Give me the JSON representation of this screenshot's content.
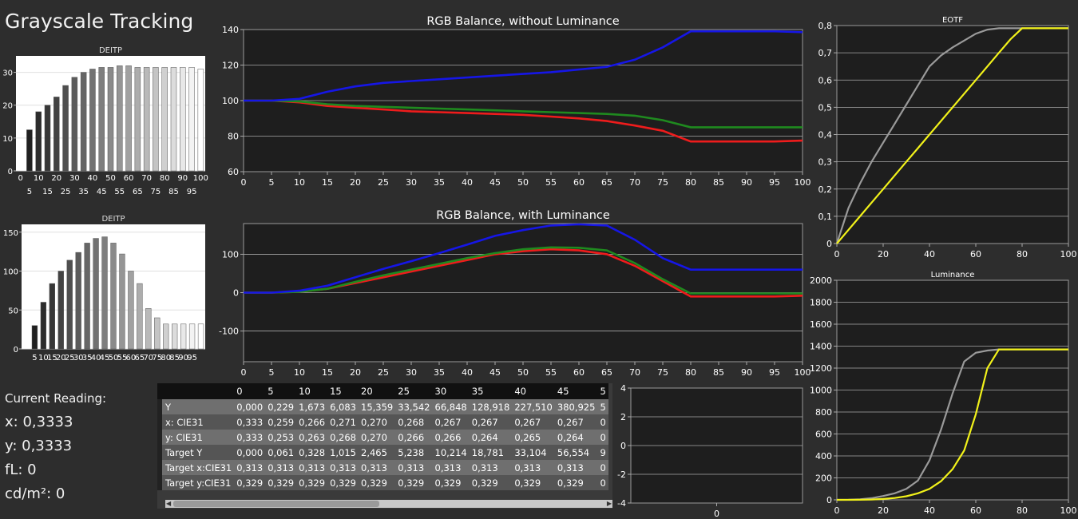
{
  "page": {
    "title": "Grayscale Tracking"
  },
  "readout": {
    "header": "Current Reading:",
    "x": "x: 0,3333",
    "y": "y: 0,3333",
    "fl": "fL: 0",
    "cdm2": "cd/m²: 0"
  },
  "table": {
    "columns": [
      "0",
      "5",
      "10",
      "15",
      "20",
      "25",
      "30",
      "35",
      "40",
      "45",
      "5"
    ],
    "rows": [
      {
        "label": "Y",
        "values": [
          "0,000",
          "0,229",
          "1,673",
          "6,083",
          "15,359",
          "33,542",
          "66,848",
          "128,918",
          "227,510",
          "380,925",
          "5"
        ]
      },
      {
        "label": "x: CIE31",
        "values": [
          "0,333",
          "0,259",
          "0,266",
          "0,271",
          "0,270",
          "0,268",
          "0,267",
          "0,267",
          "0,267",
          "0,267",
          "0"
        ]
      },
      {
        "label": "y: CIE31",
        "values": [
          "0,333",
          "0,253",
          "0,263",
          "0,268",
          "0,270",
          "0,266",
          "0,266",
          "0,264",
          "0,265",
          "0,264",
          "0"
        ]
      },
      {
        "label": "Target Y",
        "values": [
          "0,000",
          "0,061",
          "0,328",
          "1,015",
          "2,465",
          "5,238",
          "10,214",
          "18,781",
          "33,104",
          "56,554",
          "9"
        ]
      },
      {
        "label": "Target x:CIE31",
        "values": [
          "0,313",
          "0,313",
          "0,313",
          "0,313",
          "0,313",
          "0,313",
          "0,313",
          "0,313",
          "0,313",
          "0,313",
          "0"
        ]
      },
      {
        "label": "Target y:CIE31",
        "values": [
          "0,329",
          "0,329",
          "0,329",
          "0,329",
          "0,329",
          "0,329",
          "0,329",
          "0,329",
          "0,329",
          "0,329",
          "0"
        ]
      }
    ]
  },
  "colors": {
    "red": "#ee1c1c",
    "green": "#1f8a1f",
    "blue": "#1616e6",
    "yellow": "#f2f21a",
    "gray": "#9a9a9a"
  },
  "chart_data": [
    {
      "id": "deitp1",
      "type": "bar",
      "title": "DEITP",
      "categories": [
        "0",
        "5",
        "10",
        "15",
        "20",
        "25",
        "30",
        "35",
        "40",
        "45",
        "50",
        "55",
        "60",
        "65",
        "70",
        "75",
        "80",
        "85",
        "90",
        "95",
        "100"
      ],
      "values": [
        0,
        12.5,
        18,
        20,
        22.5,
        26,
        28.5,
        30,
        31,
        31.5,
        31.5,
        32,
        32,
        31.5,
        31.5,
        31.5,
        31.5,
        31.5,
        31.5,
        31.5,
        31
      ],
      "ylim": [
        0,
        35
      ],
      "yticks": [
        0,
        10,
        20,
        30
      ],
      "xticks_top": [
        "0",
        "10",
        "20",
        "30",
        "40",
        "50",
        "60",
        "70",
        "80",
        "90",
        "100"
      ],
      "xticks_bottom": [
        "5",
        "15",
        "25",
        "35",
        "45",
        "55",
        "65",
        "75",
        "85",
        "95"
      ]
    },
    {
      "id": "deitp2",
      "type": "bar",
      "title": "DEITP",
      "categories": [
        "0",
        "5",
        "10",
        "15",
        "20",
        "25",
        "30",
        "35",
        "40",
        "45",
        "50",
        "55",
        "60",
        "65",
        "70",
        "75",
        "80",
        "85",
        "90",
        "95",
        "100"
      ],
      "values": [
        0,
        30,
        60,
        84,
        100,
        114,
        124,
        136,
        142,
        144,
        136,
        122,
        100,
        84,
        52,
        40,
        32,
        32,
        32,
        32,
        32
      ],
      "ylim": [
        0,
        160
      ],
      "yticks": [
        0,
        50,
        100,
        150
      ],
      "xticks_top": [],
      "xticks_bottom": [
        "5",
        "10",
        "15",
        "20",
        "25",
        "30",
        "35",
        "40",
        "45",
        "50",
        "55",
        "60",
        "65",
        "70",
        "75",
        "80",
        "85",
        "90",
        "95"
      ]
    },
    {
      "id": "rgb1",
      "type": "line",
      "title": "RGB Balance, without Luminance",
      "x": [
        0,
        5,
        10,
        15,
        20,
        25,
        30,
        35,
        40,
        45,
        50,
        55,
        60,
        65,
        70,
        75,
        80,
        85,
        90,
        95,
        100
      ],
      "ylim": [
        60,
        140
      ],
      "yticks": [
        60,
        80,
        100,
        120,
        140
      ],
      "xticks": [
        "0",
        "5",
        "10",
        "15",
        "20",
        "25",
        "30",
        "35",
        "40",
        "45",
        "50",
        "55",
        "60",
        "65",
        "70",
        "75",
        "80",
        "85",
        "90",
        "95",
        "100"
      ],
      "series": [
        {
          "color": "red",
          "values": [
            100,
            100,
            99,
            97,
            96,
            95,
            94,
            93.5,
            93,
            92.5,
            92,
            91,
            90,
            88.5,
            86,
            83,
            77,
            77,
            77,
            77,
            77.5
          ]
        },
        {
          "color": "green",
          "values": [
            100,
            100,
            99.5,
            98,
            97,
            96.5,
            96,
            95.5,
            95,
            94.5,
            94,
            93.5,
            93,
            92.5,
            91.5,
            89,
            85,
            85,
            85,
            85,
            85
          ]
        },
        {
          "color": "blue",
          "values": [
            100,
            100,
            101,
            105,
            108,
            110,
            111,
            112,
            113,
            114,
            115,
            116,
            117.5,
            119,
            123,
            130,
            139,
            139,
            139,
            139,
            138.5
          ]
        }
      ]
    },
    {
      "id": "rgb2",
      "type": "line",
      "title": "RGB Balance, with Luminance",
      "x": [
        0,
        5,
        10,
        15,
        20,
        25,
        30,
        35,
        40,
        45,
        50,
        55,
        60,
        65,
        70,
        75,
        80,
        85,
        90,
        95,
        100
      ],
      "ylim": [
        -180,
        180
      ],
      "yticks": [
        -100,
        0,
        100
      ],
      "xticks": [
        "0",
        "5",
        "10",
        "15",
        "20",
        "25",
        "30",
        "35",
        "40",
        "45",
        "50",
        "55",
        "60",
        "65",
        "70",
        "75",
        "80",
        "85",
        "90",
        "95",
        "100"
      ],
      "series": [
        {
          "color": "red",
          "values": [
            0,
            0,
            2,
            10,
            25,
            40,
            55,
            70,
            85,
            100,
            108,
            113,
            110,
            100,
            70,
            30,
            -10,
            -10,
            -10,
            -10,
            -8
          ]
        },
        {
          "color": "green",
          "values": [
            0,
            0,
            2,
            10,
            28,
            45,
            60,
            75,
            90,
            103,
            113,
            118,
            117,
            110,
            77,
            35,
            -2,
            -2,
            -2,
            -2,
            -2
          ]
        },
        {
          "color": "blue",
          "values": [
            0,
            0,
            5,
            18,
            40,
            62,
            82,
            103,
            125,
            148,
            163,
            175,
            178,
            175,
            138,
            90,
            60,
            60,
            60,
            60,
            60
          ]
        }
      ]
    },
    {
      "id": "small",
      "type": "line",
      "title": "",
      "x": [
        0
      ],
      "ylim": [
        -4,
        4
      ],
      "yticks": [
        -4,
        -2,
        0,
        2,
        4
      ],
      "xticks": [
        "0"
      ],
      "series": []
    },
    {
      "id": "eotf",
      "type": "line",
      "title": "EOTF",
      "x": [
        0,
        5,
        10,
        15,
        20,
        25,
        30,
        35,
        40,
        45,
        50,
        55,
        60,
        65,
        70,
        75,
        80,
        85,
        90,
        95,
        100
      ],
      "ylim": [
        0,
        0.8
      ],
      "yticks": [
        "0",
        "0,1",
        "0,2",
        "0,3",
        "0,4",
        "0,5",
        "0,6",
        "0,7",
        "0,8"
      ],
      "xticks": [
        "0",
        "20",
        "40",
        "60",
        "80",
        "100"
      ],
      "series": [
        {
          "color": "gray",
          "values": [
            0,
            0.13,
            0.22,
            0.3,
            0.37,
            0.44,
            0.51,
            0.58,
            0.65,
            0.69,
            0.72,
            0.745,
            0.77,
            0.785,
            0.79,
            0.79,
            0.79,
            0.79,
            0.79,
            0.79,
            0.79
          ]
        },
        {
          "color": "yellow",
          "values": [
            0,
            0.05,
            0.1,
            0.15,
            0.2,
            0.25,
            0.3,
            0.35,
            0.4,
            0.45,
            0.5,
            0.55,
            0.6,
            0.65,
            0.7,
            0.75,
            0.79,
            0.79,
            0.79,
            0.79,
            0.79
          ]
        }
      ]
    },
    {
      "id": "lum",
      "type": "line",
      "title": "Luminance",
      "x": [
        0,
        5,
        10,
        15,
        20,
        25,
        30,
        35,
        40,
        45,
        50,
        55,
        60,
        65,
        70,
        75,
        80,
        85,
        90,
        95,
        100
      ],
      "ylim": [
        0,
        2000
      ],
      "yticks": [
        0,
        200,
        400,
        600,
        800,
        1000,
        1200,
        1400,
        1600,
        1800,
        2000
      ],
      "xticks": [
        "0",
        "20",
        "40",
        "60",
        "80",
        "100"
      ],
      "series": [
        {
          "color": "gray",
          "values": [
            0,
            1,
            5,
            15,
            35,
            60,
            100,
            175,
            360,
            640,
            970,
            1260,
            1340,
            1360,
            1370,
            1370,
            1370,
            1370,
            1370,
            1370,
            1370
          ]
        },
        {
          "color": "yellow",
          "values": [
            0,
            0.2,
            1,
            3,
            8,
            17,
            33,
            60,
            100,
            170,
            280,
            450,
            780,
            1200,
            1370,
            1370,
            1370,
            1370,
            1370,
            1370,
            1370
          ]
        }
      ]
    }
  ]
}
